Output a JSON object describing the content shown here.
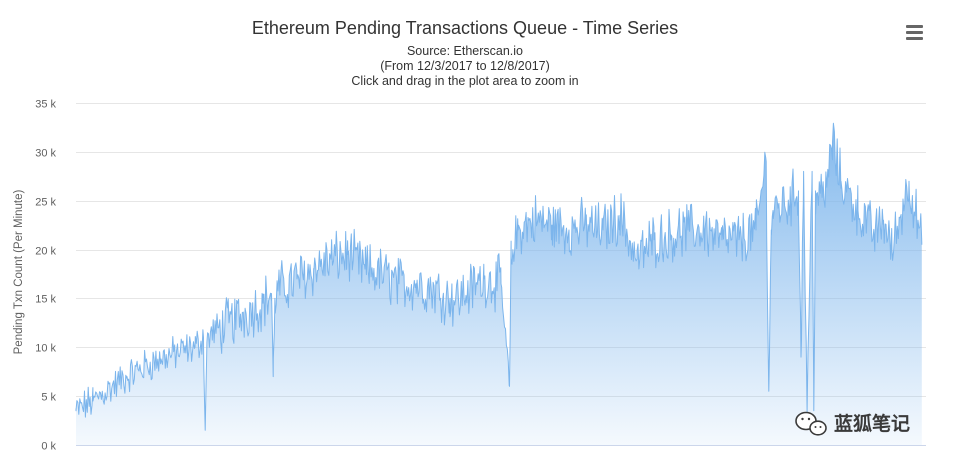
{
  "chart_data": {
    "type": "area",
    "title": "Ethereum Pending Transactions Queue - Time Series",
    "subtitles": [
      "Source: Etherscan.io",
      "(From 12/3/2017 to 12/8/2017)",
      "Click and drag in the plot area to zoom in"
    ],
    "xlabel": "",
    "ylabel": "Pending Txn Count (Per Minute)",
    "ylim": [
      0,
      35000
    ],
    "yticks": [
      0,
      5000,
      10000,
      15000,
      20000,
      25000,
      30000,
      35000
    ],
    "ytick_labels": [
      "0 k",
      "5 k",
      "10 k",
      "15 k",
      "20 k",
      "25 k",
      "30 k",
      "35 k"
    ],
    "xlim": [
      0,
      100
    ],
    "grid": true,
    "legend": "none",
    "series": [
      {
        "name": "Pending Txn Count",
        "color": "#7cb5ec",
        "x": [
          0,
          2,
          4,
          6,
          8,
          10,
          12,
          14,
          15,
          15.2,
          15.4,
          16,
          18,
          20,
          22,
          23,
          23.2,
          23.4,
          24,
          26,
          28,
          30,
          32,
          34,
          36,
          38,
          40,
          42,
          44,
          45,
          48,
          50,
          51,
          51.2,
          51.4,
          52,
          54,
          56,
          58,
          60,
          62,
          64,
          66,
          68,
          70,
          72,
          74,
          76,
          78,
          80,
          81.2,
          81.5,
          81.8,
          82,
          84,
          85,
          85.3,
          85.6,
          86,
          86.6,
          86.8,
          87,
          88,
          89,
          90,
          92,
          94,
          95,
          96,
          98,
          99.5
        ],
        "values": [
          3500,
          4500,
          5800,
          7000,
          8000,
          8800,
          9500,
          10000,
          11000,
          1500,
          10500,
          11500,
          12500,
          13500,
          14500,
          15500,
          7000,
          15000,
          16000,
          17000,
          18000,
          19000,
          19500,
          18000,
          17500,
          16500,
          16500,
          16000,
          15000,
          15000,
          17000,
          16500,
          6000,
          19000,
          20000,
          22000,
          23000,
          22500,
          22000,
          22500,
          22000,
          23500,
          19000,
          21000,
          21500,
          22000,
          22000,
          21000,
          21000,
          22000,
          29000,
          5500,
          22000,
          24000,
          25000,
          26000,
          9000,
          28000,
          4000,
          28000,
          3500,
          26000,
          25000,
          31000,
          27000,
          24000,
          21500,
          23000,
          20000,
          27000,
          20500
        ]
      }
    ]
  },
  "ui": {
    "menu_icon": "hamburger-menu-icon",
    "watermark": {
      "icon": "wechat-icon",
      "text": "蓝狐笔记"
    }
  }
}
